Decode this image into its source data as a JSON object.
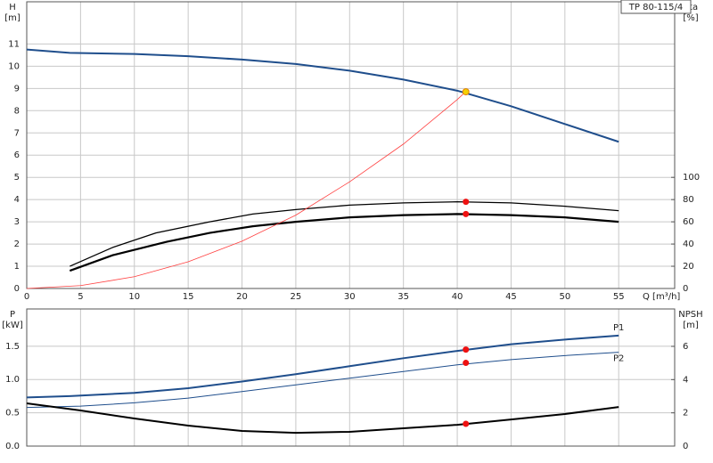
{
  "chart_data": [
    {
      "type": "line",
      "title": "TP 80-115/4",
      "ylabel": [
        "H",
        "[m]"
      ],
      "y2label": [
        "eta",
        "[%]"
      ],
      "xlabel": "Q [m³/h]",
      "xlim": [
        0,
        60.2
      ],
      "xticks": [
        0,
        5,
        10,
        15,
        20,
        25,
        30,
        35,
        40,
        45,
        50,
        55
      ],
      "ylim": [
        0,
        12.9
      ],
      "yticks": [
        0,
        1,
        2,
        3,
        4,
        5,
        6,
        7,
        8,
        9,
        10,
        11
      ],
      "y2lim": [
        0,
        258
      ],
      "y2ticks": [
        0,
        20,
        40,
        60,
        80,
        100
      ],
      "grid": true,
      "series": [
        {
          "color": "#1f4e8c",
          "width": 2,
          "axis": "y",
          "x": [
            0,
            4,
            10,
            15,
            20,
            25,
            30,
            35,
            40,
            45,
            50,
            55
          ],
          "values": [
            10.75,
            10.6,
            10.55,
            10.45,
            10.3,
            10.1,
            9.8,
            9.4,
            8.9,
            8.2,
            7.4,
            6.6
          ]
        },
        {
          "color": "#000000",
          "width": 1.3,
          "axis": "y2",
          "x": [
            4,
            8,
            12,
            17,
            21,
            25,
            30,
            35,
            40,
            45,
            50,
            55
          ],
          "values": [
            20,
            37,
            50,
            60,
            67,
            71,
            75,
            77,
            78,
            77,
            74,
            70
          ]
        },
        {
          "color": "#000000",
          "width": 2.2,
          "axis": "y2",
          "x": [
            4,
            8,
            13,
            17,
            21,
            25,
            30,
            35,
            40,
            45,
            50,
            55
          ],
          "values": [
            16,
            30,
            42,
            50,
            56,
            60,
            64,
            66,
            67,
            66,
            64,
            60
          ]
        },
        {
          "color": "#ff4040",
          "width": 0.8,
          "axis": "y",
          "x": [
            0,
            5,
            10,
            15,
            20,
            25,
            30,
            35,
            40,
            41
          ],
          "values": [
            0,
            0.13,
            0.53,
            1.2,
            2.13,
            3.3,
            4.8,
            6.5,
            8.5,
            8.95
          ]
        }
      ],
      "points": [
        {
          "x": 40.8,
          "y": 8.85,
          "axis": "y",
          "color": "#f5d000"
        },
        {
          "x": 40.8,
          "y": 78,
          "axis": "y2",
          "color": "#ee1111"
        },
        {
          "x": 40.8,
          "y": 67,
          "axis": "y2",
          "color": "#ee1111"
        }
      ]
    },
    {
      "type": "line",
      "ylabel": [
        "P",
        "[kW]"
      ],
      "y2label": [
        "NPSH",
        "[m]"
      ],
      "xlim": [
        0,
        60.2
      ],
      "ylim": [
        0,
        2.06
      ],
      "yticks": [
        {
          "value": 0,
          "label": "0.0"
        },
        0.5,
        {
          "value": 1,
          "label": "1.0"
        },
        1.5
      ],
      "y2lim": [
        0,
        8.25
      ],
      "y2ticks": [
        0,
        2,
        4,
        6
      ],
      "grid": true,
      "series": [
        {
          "name": "P1",
          "color": "#1f4e8c",
          "width": 2,
          "axis": "y",
          "x": [
            0,
            4,
            10,
            15,
            20,
            25,
            30,
            35,
            40,
            45,
            50,
            55
          ],
          "values": [
            0.73,
            0.75,
            0.8,
            0.87,
            0.97,
            1.08,
            1.2,
            1.32,
            1.43,
            1.53,
            1.6,
            1.66
          ]
        },
        {
          "name": "P2",
          "color": "#1f4e8c",
          "width": 1,
          "axis": "y",
          "x": [
            0,
            5,
            10,
            15,
            20,
            25,
            30,
            35,
            40,
            45,
            50,
            55
          ],
          "values": [
            0.58,
            0.6,
            0.65,
            0.72,
            0.82,
            0.92,
            1.02,
            1.12,
            1.22,
            1.3,
            1.36,
            1.41
          ]
        },
        {
          "color": "#000000",
          "width": 2,
          "axis": "y2",
          "x": [
            0,
            5,
            10,
            15,
            20,
            25,
            30,
            35,
            40,
            45,
            50,
            55
          ],
          "values": [
            2.57,
            2.14,
            1.66,
            1.23,
            0.91,
            0.8,
            0.86,
            1.07,
            1.28,
            1.6,
            1.93,
            2.35
          ]
        }
      ],
      "points": [
        {
          "x": 40.8,
          "y": 1.45,
          "axis": "y",
          "color": "#ee1111"
        },
        {
          "x": 40.8,
          "y": 1.25,
          "axis": "y",
          "color": "#ee1111"
        },
        {
          "x": 40.8,
          "y": 1.34,
          "axis": "y2",
          "color": "#ee1111"
        }
      ]
    }
  ]
}
